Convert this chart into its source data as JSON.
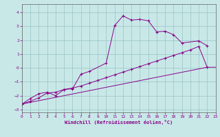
{
  "background_color": "#c8e8e8",
  "grid_color": "#a0c8c8",
  "line_color": "#880088",
  "xlabel": "Windchill (Refroidissement éolien,°C)",
  "xlim": [
    0,
    23
  ],
  "ylim": [
    -3.2,
    4.6
  ],
  "yticks": [
    -3,
    -2,
    -1,
    0,
    1,
    2,
    3,
    4
  ],
  "xticks": [
    0,
    1,
    2,
    3,
    4,
    5,
    6,
    7,
    8,
    9,
    10,
    11,
    12,
    13,
    14,
    15,
    16,
    17,
    18,
    19,
    20,
    21,
    22,
    23
  ],
  "curve1_x": [
    0,
    1,
    2,
    3,
    4,
    5,
    6,
    7,
    8,
    9,
    10,
    11,
    12,
    13,
    14,
    15,
    16,
    17,
    18,
    19,
    20,
    21,
    22
  ],
  "curve1_y": [
    -2.6,
    -2.4,
    -2.15,
    -1.8,
    -1.75,
    -1.55,
    -1.45,
    -1.3,
    -1.1,
    -0.9,
    -0.7,
    -0.5,
    -0.3,
    -0.1,
    0.1,
    0.3,
    0.5,
    0.7,
    0.9,
    1.1,
    1.3,
    1.55,
    0.05
  ],
  "curve2_x": [
    0,
    1,
    2,
    3,
    4,
    5,
    6,
    7,
    8,
    10,
    11,
    12,
    13,
    14,
    15,
    16,
    17,
    18,
    19,
    21,
    22
  ],
  "curve2_y": [
    -2.6,
    -2.2,
    -1.85,
    -1.75,
    -2.0,
    -1.55,
    -1.5,
    -0.45,
    -0.25,
    0.35,
    3.05,
    3.75,
    3.45,
    3.5,
    3.4,
    2.6,
    2.65,
    2.4,
    1.8,
    1.95,
    1.6
  ],
  "curve3_x": [
    0,
    22,
    23
  ],
  "curve3_y": [
    -2.6,
    0.05,
    0.05
  ]
}
